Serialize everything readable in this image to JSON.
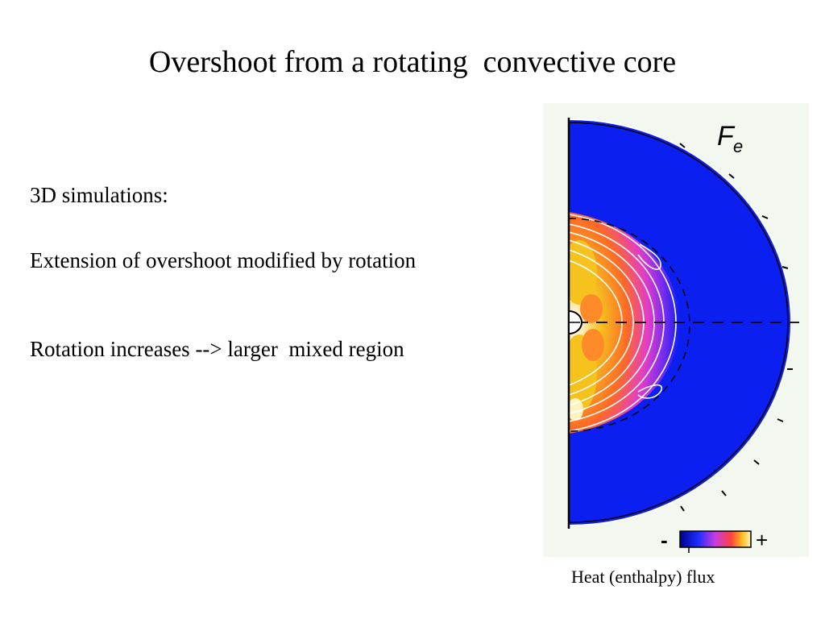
{
  "slide": {
    "title": "Overshoot from a rotating  convective core",
    "bullets": [
      "3D simulations:",
      "Extension of overshoot modified by rotation",
      "Rotation increases --> larger  mixed region"
    ]
  },
  "figure": {
    "label_main": "F",
    "label_sub": "e",
    "colorbar_minus": "-",
    "colorbar_plus": "+",
    "caption": "Heat (enthalpy) flux",
    "colors": {
      "field": "#0a1ff0",
      "core_hot": "#f5c21e",
      "core_mid": "#ff3b2f",
      "core_warm": "#e23cc9",
      "core_cool": "#7b2cf0",
      "contour": "#ffffff",
      "background": "#f2f7ef"
    }
  }
}
